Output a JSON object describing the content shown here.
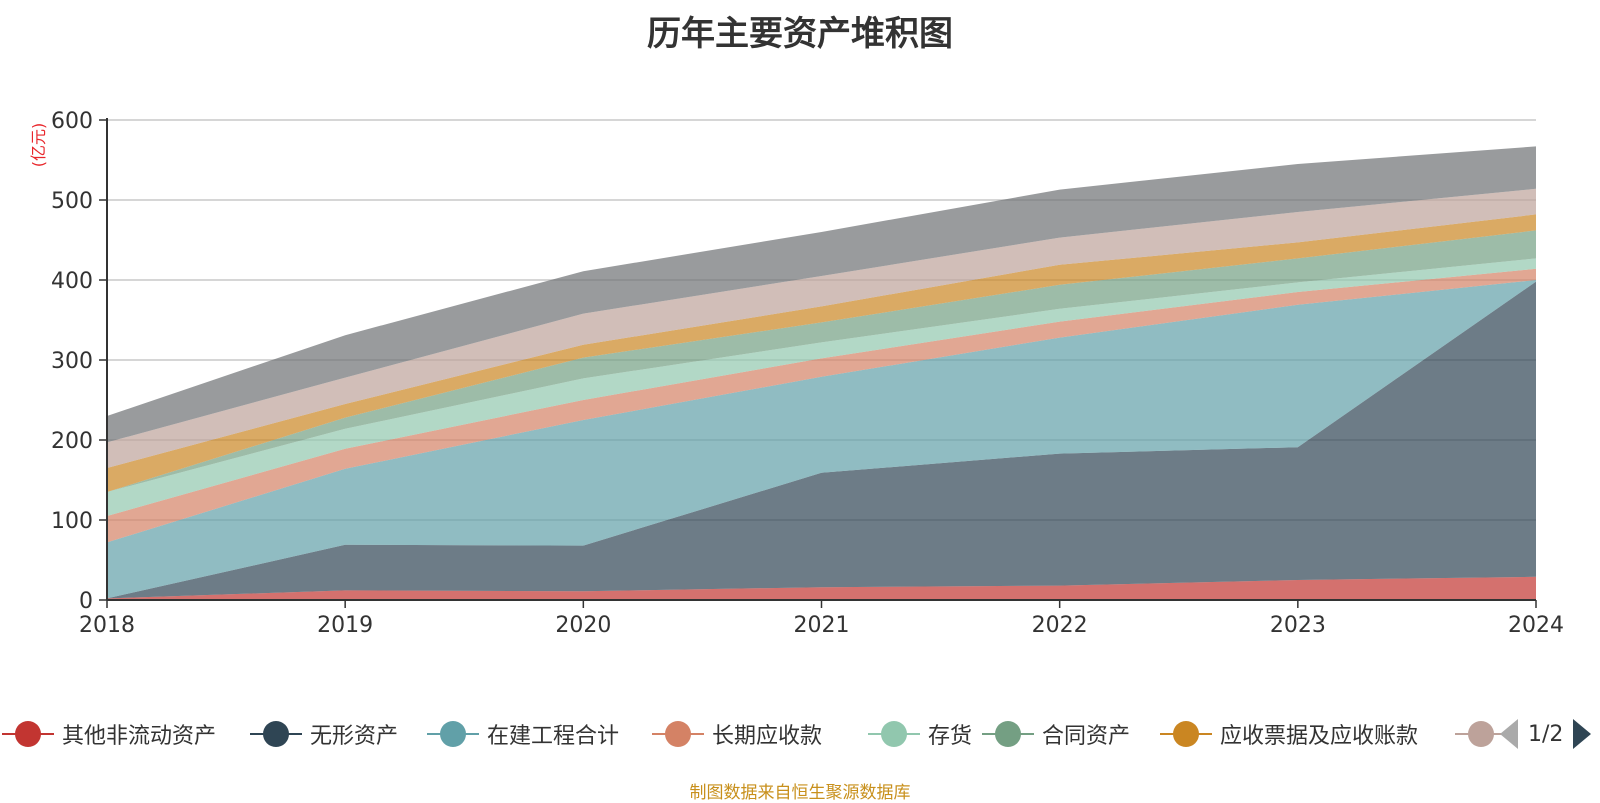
{
  "title": "历年主要资产堆积图",
  "source_note": "制图数据来自恒生聚源数据库",
  "legend_page": "1/2",
  "chart_data": {
    "type": "area",
    "stacked": true,
    "title": "历年主要资产堆积图",
    "ylabel": "(亿元)",
    "xlabel": "",
    "ylim": [
      0,
      600
    ],
    "yticks": [
      0,
      100,
      200,
      300,
      400,
      500,
      600
    ],
    "categories": [
      "2018",
      "2019",
      "2020",
      "2021",
      "2022",
      "2023",
      "2024"
    ],
    "series": [
      {
        "name": "其他非流动资产",
        "color": "#c23531",
        "values": [
          2,
          12,
          11,
          16,
          18,
          25,
          29
        ]
      },
      {
        "name": "无形资产",
        "color": "#2f4554",
        "values": [
          0,
          57,
          57,
          143,
          165,
          166,
          369
        ]
      },
      {
        "name": "在建工程合计",
        "color": "#61a0a8",
        "values": [
          70,
          95,
          157,
          120,
          145,
          178,
          2
        ]
      },
      {
        "name": "长期应收款",
        "color": "#d48265",
        "values": [
          33,
          25,
          25,
          23,
          20,
          16,
          14
        ]
      },
      {
        "name": "存货",
        "color": "#91c7ae",
        "values": [
          30,
          25,
          27,
          20,
          16,
          12,
          13
        ]
      },
      {
        "name": "合同资产",
        "color": "#749f83",
        "values": [
          0,
          14,
          26,
          25,
          30,
          30,
          35
        ]
      },
      {
        "name": "应收票据及应收账款",
        "color": "#ca8622",
        "values": [
          30,
          17,
          16,
          20,
          25,
          20,
          20
        ]
      },
      {
        "name": "",
        "color": "#bda29a",
        "values": [
          32,
          33,
          39,
          38,
          34,
          38,
          32
        ]
      },
      {
        "name": "",
        "color": "#6e7074",
        "values": [
          33,
          53,
          53,
          55,
          60,
          60,
          53
        ]
      }
    ]
  }
}
